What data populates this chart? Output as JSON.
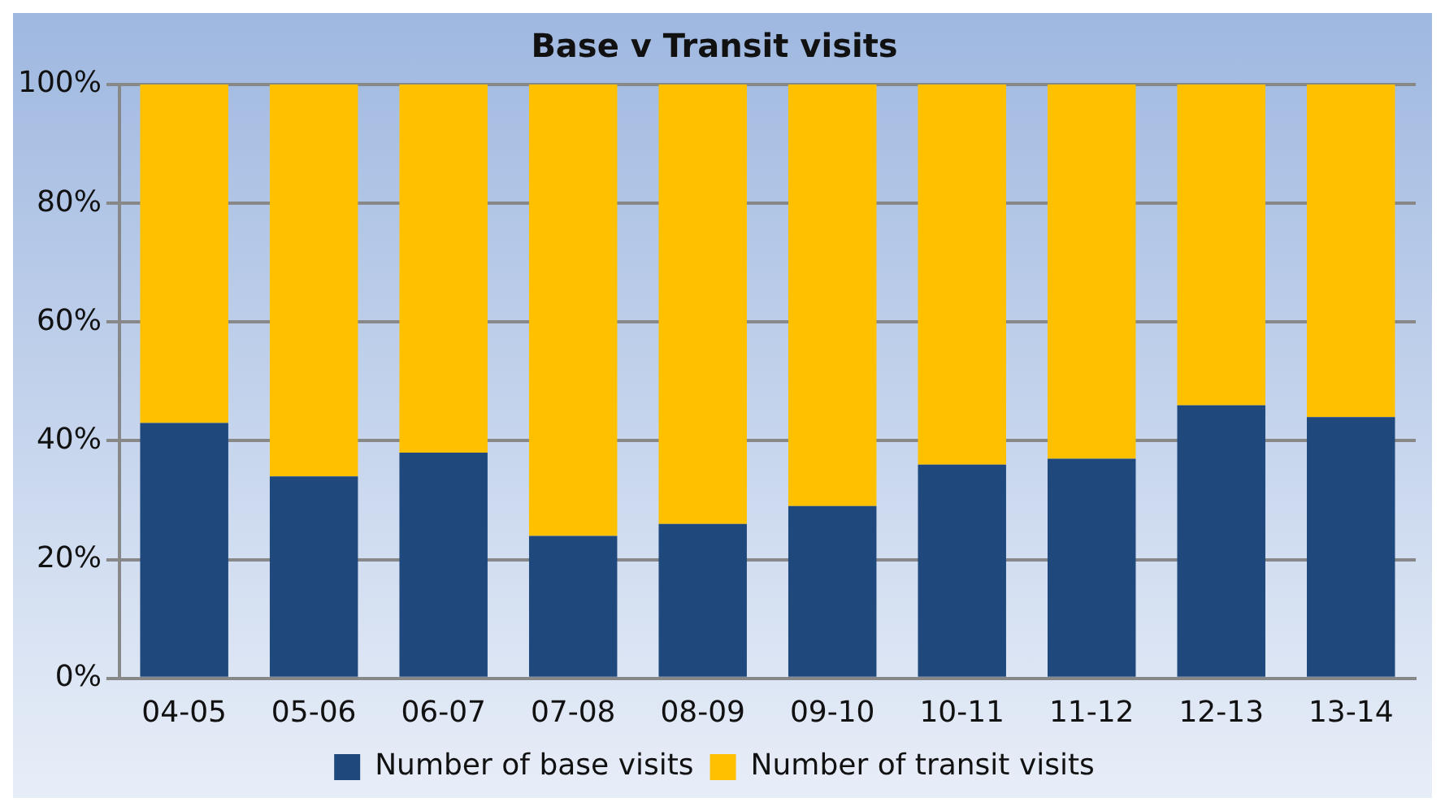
{
  "chart_data": {
    "type": "bar",
    "title": "Base v Transit visits",
    "stacked": true,
    "categories": [
      "04-05",
      "05-06",
      "06-07",
      "07-08",
      "08-09",
      "09-10",
      "10-11",
      "11-12",
      "12-13",
      "13-14"
    ],
    "series": [
      {
        "name": "Number of base visits",
        "color": "#1f497d",
        "values": [
          43,
          34,
          38,
          24,
          26,
          29,
          36,
          37,
          46,
          44
        ]
      },
      {
        "name": "Number of transit visits",
        "color": "#ffc000",
        "values": [
          57,
          66,
          62,
          76,
          74,
          71,
          64,
          63,
          54,
          56
        ]
      }
    ],
    "ylim": [
      0,
      100
    ],
    "yticks": [
      {
        "value": 0,
        "label": "0%"
      },
      {
        "value": 20,
        "label": "20%"
      },
      {
        "value": 40,
        "label": "40%"
      },
      {
        "value": 60,
        "label": "60%"
      },
      {
        "value": 80,
        "label": "80%"
      },
      {
        "value": 100,
        "label": "100%"
      }
    ],
    "grid": "y",
    "legend": "bottom"
  }
}
